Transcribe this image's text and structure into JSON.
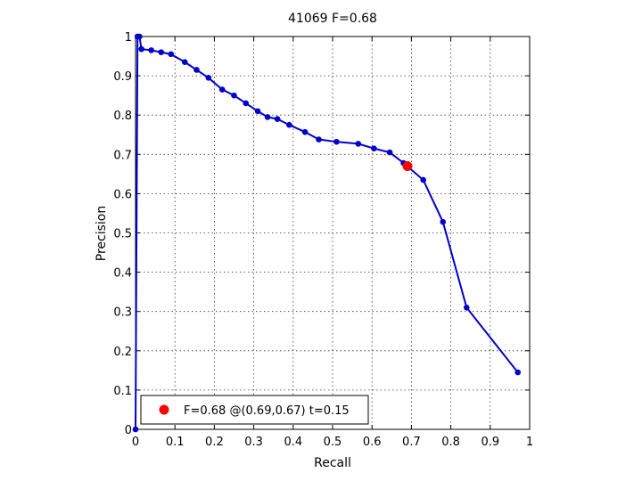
{
  "chart_data": {
    "type": "line",
    "title": "41069 F=0.68",
    "xlabel": "Recall",
    "ylabel": "Precision",
    "xlim": [
      0,
      1
    ],
    "ylim": [
      0,
      1
    ],
    "grid": true,
    "xticks": [
      "0",
      "0.1",
      "0.2",
      "0.3",
      "0.4",
      "0.5",
      "0.6",
      "0.7",
      "0.8",
      "0.9",
      "1"
    ],
    "yticks": [
      "0",
      "0.1",
      "0.2",
      "0.3",
      "0.4",
      "0.5",
      "0.6",
      "0.7",
      "0.8",
      "0.9",
      "1"
    ],
    "series": [
      {
        "color": "#0000cc",
        "x": [
          0,
          0.005,
          0.01,
          0.015,
          0.04,
          0.065,
          0.09,
          0.125,
          0.155,
          0.185,
          0.22,
          0.25,
          0.28,
          0.31,
          0.335,
          0.36,
          0.39,
          0.43,
          0.465,
          0.51,
          0.565,
          0.605,
          0.645,
          0.68,
          0.73,
          0.78,
          0.84,
          0.97
        ],
        "y": [
          0,
          1.0,
          1.0,
          0.968,
          0.965,
          0.96,
          0.955,
          0.935,
          0.915,
          0.895,
          0.865,
          0.85,
          0.83,
          0.81,
          0.795,
          0.79,
          0.775,
          0.757,
          0.738,
          0.732,
          0.727,
          0.715,
          0.705,
          0.678,
          0.635,
          0.528,
          0.31,
          0.145
        ]
      }
    ],
    "highlight": {
      "x": 0.69,
      "y": 0.67,
      "color": "#ff0000"
    },
    "legend": {
      "location": "bottom-left",
      "label": "F=0.68 @(0.69,0.67) t=0.15"
    }
  }
}
